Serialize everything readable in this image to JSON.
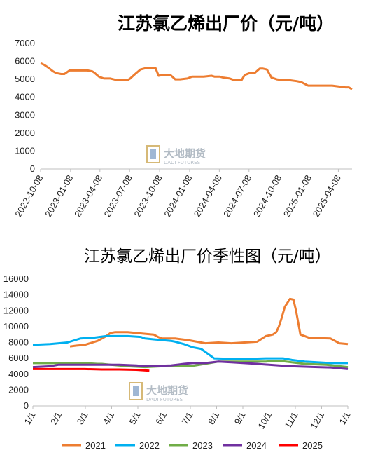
{
  "watermark": {
    "cn": "大地期货",
    "en": "DADI FUTURES"
  },
  "chart_data": [
    {
      "type": "line",
      "title": "江苏氯乙烯出厂价（元/吨）",
      "color": "#ED7D31",
      "ylim": [
        0,
        7000
      ],
      "yticks": [
        0,
        1000,
        2000,
        3000,
        4000,
        5000,
        6000,
        7000
      ],
      "xlim": [
        "2022-10-08",
        "2025-05-20"
      ],
      "xticks": [
        "2022-10-08",
        "2023-01-08",
        "2023-04-08",
        "2023-07-08",
        "2023-10-08",
        "2024-01-08",
        "2024-04-08",
        "2024-07-08",
        "2024-10-08",
        "2025-01-08",
        "2025-04-08"
      ],
      "grid": false,
      "x": [
        "2022-10-08",
        "2022-10-20",
        "2022-11-01",
        "2022-11-15",
        "2022-11-25",
        "2022-12-10",
        "2022-12-20",
        "2023-01-05",
        "2023-01-20",
        "2023-02-15",
        "2023-03-01",
        "2023-03-15",
        "2023-03-20",
        "2023-04-05",
        "2023-04-20",
        "2023-05-10",
        "2023-06-01",
        "2023-06-20",
        "2023-07-01",
        "2023-07-10",
        "2023-07-25",
        "2023-08-10",
        "2023-09-01",
        "2023-09-25",
        "2023-10-05",
        "2023-10-20",
        "2023-11-10",
        "2023-11-25",
        "2023-12-10",
        "2024-01-01",
        "2024-01-15",
        "2024-01-25",
        "2024-02-20",
        "2024-03-15",
        "2024-03-25",
        "2024-04-10",
        "2024-04-20",
        "2024-05-10",
        "2024-05-25",
        "2024-06-15",
        "2024-06-25",
        "2024-07-10",
        "2024-07-25",
        "2024-08-10",
        "2024-08-20",
        "2024-09-01",
        "2024-09-15",
        "2024-10-01",
        "2024-10-20",
        "2024-11-10",
        "2024-12-01",
        "2024-12-15",
        "2025-01-05",
        "2025-02-01",
        "2025-03-01",
        "2025-03-20",
        "2025-04-10",
        "2025-04-30",
        "2025-05-10",
        "2025-05-20"
      ],
      "y": [
        5900,
        5800,
        5650,
        5450,
        5350,
        5300,
        5300,
        5500,
        5500,
        5500,
        5500,
        5450,
        5400,
        5150,
        5050,
        5050,
        4950,
        4950,
        4950,
        5050,
        5300,
        5550,
        5650,
        5650,
        5200,
        5250,
        5250,
        5000,
        5000,
        5050,
        5150,
        5150,
        5150,
        5200,
        5150,
        5150,
        5100,
        5050,
        4950,
        4950,
        5250,
        5350,
        5350,
        5600,
        5600,
        5550,
        5100,
        5000,
        4950,
        4950,
        4900,
        4850,
        4650,
        4650,
        4650,
        4650,
        4600,
        4550,
        4550,
        4450
      ]
    },
    {
      "type": "line",
      "title": "江苏氯乙烯出厂价季性图（元/吨）",
      "ylim": [
        0,
        16000
      ],
      "yticks": [
        0,
        2000,
        4000,
        6000,
        8000,
        10000,
        12000,
        14000,
        16000
      ],
      "xticks": [
        "1/1",
        "2/1",
        "3/1",
        "4/1",
        "5/1",
        "6/1",
        "7/1",
        "8/1",
        "9/1",
        "10/1",
        "11/1",
        "12/1",
        "1/1"
      ],
      "xlim": [
        0,
        365
      ],
      "grid": false,
      "legend": "bottom",
      "series": [
        {
          "name": "2021",
          "color": "#ED7D31",
          "x": [
            43,
            50,
            60,
            75,
            85,
            90,
            95,
            110,
            130,
            140,
            145,
            150,
            165,
            180,
            200,
            215,
            230,
            245,
            260,
            270,
            278,
            282,
            285,
            288,
            292,
            295,
            298,
            302,
            305,
            310,
            320,
            345,
            355,
            365
          ],
          "y": [
            7500,
            7600,
            7700,
            8200,
            8800,
            9200,
            9300,
            9300,
            9100,
            9000,
            8700,
            8500,
            8500,
            8300,
            7900,
            8000,
            7900,
            8000,
            8100,
            8800,
            9000,
            9300,
            10000,
            11000,
            12500,
            13000,
            13500,
            13400,
            12000,
            9000,
            8600,
            8500,
            7900,
            7800
          ]
        },
        {
          "name": "2022",
          "color": "#00B0F0",
          "x": [
            0,
            20,
            40,
            55,
            70,
            85,
            90,
            95,
            110,
            125,
            130,
            140,
            150,
            160,
            165,
            175,
            180,
            185,
            195,
            200,
            210,
            240,
            270,
            290,
            300,
            315,
            345,
            365
          ],
          "y": [
            7700,
            7800,
            8000,
            8500,
            8600,
            8800,
            8800,
            8800,
            8800,
            8700,
            8500,
            8400,
            8300,
            8200,
            8100,
            7800,
            7600,
            7400,
            7200,
            6800,
            6000,
            5900,
            6000,
            6000,
            5800,
            5600,
            5400,
            5400
          ]
        },
        {
          "name": "2023",
          "color": "#70AD47",
          "x": [
            0,
            30,
            60,
            75,
            80,
            90,
            110,
            130,
            150,
            160,
            175,
            185,
            205,
            215,
            225,
            245,
            270,
            285,
            300,
            315,
            340,
            365
          ],
          "y": [
            5400,
            5400,
            5400,
            5300,
            5300,
            5200,
            5000,
            4900,
            5000,
            5050,
            5050,
            5050,
            5400,
            5600,
            5600,
            5600,
            5600,
            5700,
            5500,
            5300,
            5200,
            4900
          ]
        },
        {
          "name": "2024",
          "color": "#7030A0",
          "x": [
            0,
            20,
            30,
            60,
            80,
            100,
            120,
            130,
            160,
            175,
            185,
            200,
            215,
            230,
            245,
            260,
            285,
            300,
            330,
            345,
            365
          ],
          "y": [
            4900,
            5000,
            5200,
            5200,
            5200,
            5200,
            5100,
            5000,
            5100,
            5300,
            5400,
            5400,
            5600,
            5500,
            5400,
            5300,
            5100,
            5000,
            4900,
            4850,
            4650
          ]
        },
        {
          "name": "2025",
          "color": "#FF0000",
          "x": [
            0,
            20,
            40,
            60,
            80,
            100,
            120,
            135
          ],
          "y": [
            4650,
            4650,
            4650,
            4650,
            4600,
            4600,
            4550,
            4450
          ]
        }
      ]
    }
  ]
}
